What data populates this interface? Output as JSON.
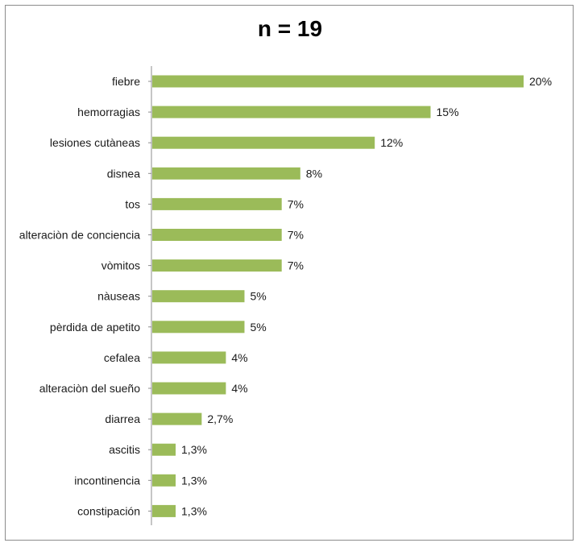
{
  "chart_data": {
    "type": "bar",
    "orientation": "horizontal",
    "title": "n = 19",
    "categories": [
      "fiebre",
      "hemorragias",
      "lesiones cutàneas",
      "disnea",
      "tos",
      "alteraciòn de conciencia",
      "vòmitos",
      "nàuseas",
      "pèrdida de apetito",
      "cefalea",
      "alteraciòn del sueño",
      "diarrea",
      "ascitis",
      "incontinencia",
      "constipación"
    ],
    "values": [
      20,
      15,
      12,
      8,
      7,
      7,
      7,
      5,
      5,
      4,
      4,
      2.7,
      1.3,
      1.3,
      1.3
    ],
    "value_labels": [
      "20%",
      "15%",
      "12%",
      "8%",
      "7%",
      "7%",
      "7%",
      "5%",
      "5%",
      "4%",
      "4%",
      "2,7%",
      "1,3%",
      "1,3%",
      "1,3%"
    ],
    "xlim": [
      0,
      20
    ],
    "grid": false,
    "legend": "none",
    "bar_color": "#9bbb59"
  }
}
